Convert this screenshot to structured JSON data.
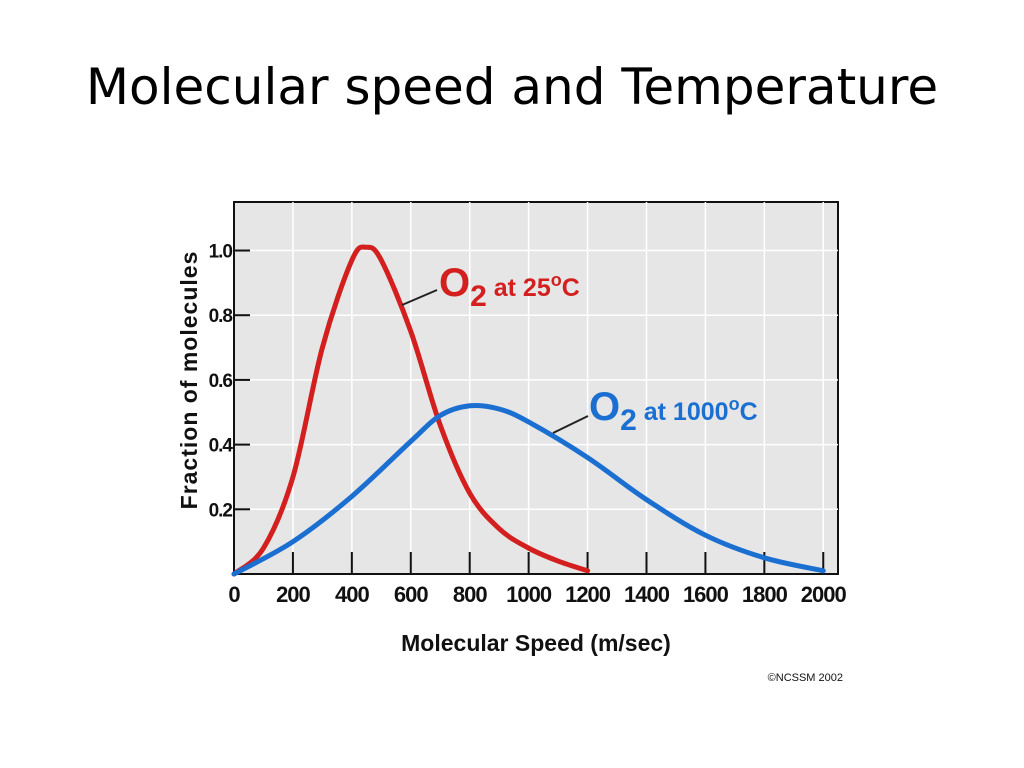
{
  "slide": {
    "title": "Molecular speed and Temperature"
  },
  "chart_data": {
    "type": "line",
    "xlabel": "Molecular Speed (m/sec)",
    "ylabel": "Fraction of molecules",
    "xlim": [
      0,
      2050
    ],
    "ylim": [
      0,
      1.15
    ],
    "x_ticks": [
      0,
      200,
      400,
      600,
      800,
      1000,
      1200,
      1400,
      1600,
      1800,
      2000
    ],
    "x_tick_labels": [
      "0",
      "200",
      "400",
      "600",
      "800",
      "1000",
      "1200",
      "1400",
      "1600",
      "1800",
      "2000"
    ],
    "y_ticks": [
      0.2,
      0.4,
      0.6,
      0.8,
      1.0
    ],
    "y_tick_labels": [
      "0.2",
      "0.4",
      "0.6",
      "0.8",
      "1.0"
    ],
    "grid": true,
    "background": "#e6e6e6",
    "series": [
      {
        "label_main": "O",
        "label_sub": "2",
        "label_rest": " at 25",
        "label_deg": "o",
        "label_unit": "C",
        "color": "#d41f1f",
        "x": [
          0,
          100,
          200,
          300,
          400,
          450,
          500,
          600,
          700,
          800,
          900,
          1000,
          1100,
          1200
        ],
        "y": [
          0,
          0.08,
          0.3,
          0.7,
          0.97,
          1.01,
          0.97,
          0.75,
          0.46,
          0.25,
          0.14,
          0.08,
          0.04,
          0.01
        ]
      },
      {
        "label_main": "O",
        "label_sub": "2",
        "label_rest": " at 1000",
        "label_deg": "o",
        "label_unit": "C",
        "color": "#1a6fd1",
        "x": [
          0,
          200,
          400,
          600,
          700,
          800,
          900,
          1000,
          1200,
          1400,
          1600,
          1800,
          2000
        ],
        "y": [
          0,
          0.1,
          0.24,
          0.41,
          0.49,
          0.52,
          0.51,
          0.47,
          0.36,
          0.23,
          0.12,
          0.05,
          0.01
        ]
      }
    ],
    "credit": "©NCSSM 2002"
  }
}
